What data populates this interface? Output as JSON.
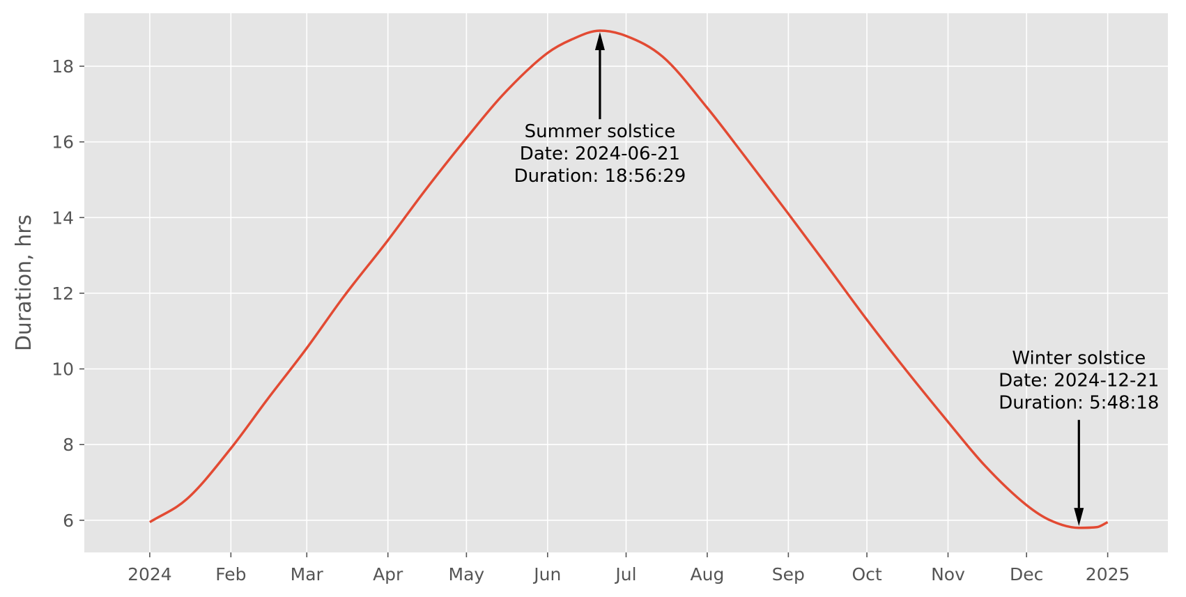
{
  "chart_data": {
    "type": "line",
    "title": "",
    "xlabel": "",
    "ylabel": "Duration, hrs",
    "grid": true,
    "legend": "none",
    "xlim": [
      "2023-12-07",
      "2025-01-24"
    ],
    "ylim": [
      5.15,
      19.4
    ],
    "x_ticks": [
      {
        "date": "2024-01-01",
        "label": "2024"
      },
      {
        "date": "2024-02-01",
        "label": "Feb"
      },
      {
        "date": "2024-03-01",
        "label": "Mar"
      },
      {
        "date": "2024-04-01",
        "label": "Apr"
      },
      {
        "date": "2024-05-01",
        "label": "May"
      },
      {
        "date": "2024-06-01",
        "label": "Jun"
      },
      {
        "date": "2024-07-01",
        "label": "Jul"
      },
      {
        "date": "2024-08-01",
        "label": "Aug"
      },
      {
        "date": "2024-09-01",
        "label": "Sep"
      },
      {
        "date": "2024-10-01",
        "label": "Oct"
      },
      {
        "date": "2024-11-01",
        "label": "Nov"
      },
      {
        "date": "2024-12-01",
        "label": "Dec"
      },
      {
        "date": "2025-01-01",
        "label": "2025"
      }
    ],
    "y_ticks": [
      6,
      8,
      10,
      12,
      14,
      16,
      18
    ],
    "series": [
      {
        "color": "#E24A33",
        "x": [
          "2024-01-01",
          "2024-01-15",
          "2024-02-01",
          "2024-02-15",
          "2024-03-01",
          "2024-03-15",
          "2024-04-01",
          "2024-04-15",
          "2024-05-01",
          "2024-05-15",
          "2024-06-01",
          "2024-06-10",
          "2024-06-21",
          "2024-07-01",
          "2024-07-15",
          "2024-08-01",
          "2024-08-15",
          "2024-09-01",
          "2024-09-15",
          "2024-10-01",
          "2024-10-15",
          "2024-11-01",
          "2024-11-15",
          "2024-12-01",
          "2024-12-10",
          "2024-12-21",
          "2024-12-28",
          "2025-01-01"
        ],
        "y": [
          5.95,
          6.55,
          7.9,
          9.2,
          10.55,
          11.9,
          13.4,
          14.7,
          16.1,
          17.25,
          18.35,
          18.7,
          18.94,
          18.8,
          18.25,
          16.9,
          15.65,
          14.1,
          12.8,
          11.3,
          10.05,
          8.6,
          7.45,
          6.4,
          6.0,
          5.8,
          5.82,
          5.95
        ]
      }
    ],
    "annotations": [
      {
        "id": "summer",
        "x": "2024-06-21",
        "y": 18.94,
        "text_y": 16.6,
        "position": "below",
        "lines": [
          "Summer solstice",
          "Date: 2024-06-21",
          "Duration: 18:56:29"
        ]
      },
      {
        "id": "winter",
        "x": "2024-12-21",
        "y": 5.81,
        "text_y": 8.8,
        "position": "above",
        "lines": [
          "Winter solstice",
          "Date: 2024-12-21",
          "Duration: 5:48:18"
        ]
      }
    ],
    "colors": {
      "panel_bg": "#E5E5E5",
      "grid": "#FFFFFF",
      "line": "#E24A33",
      "tick": "#555555",
      "arrow": "#000000"
    }
  }
}
